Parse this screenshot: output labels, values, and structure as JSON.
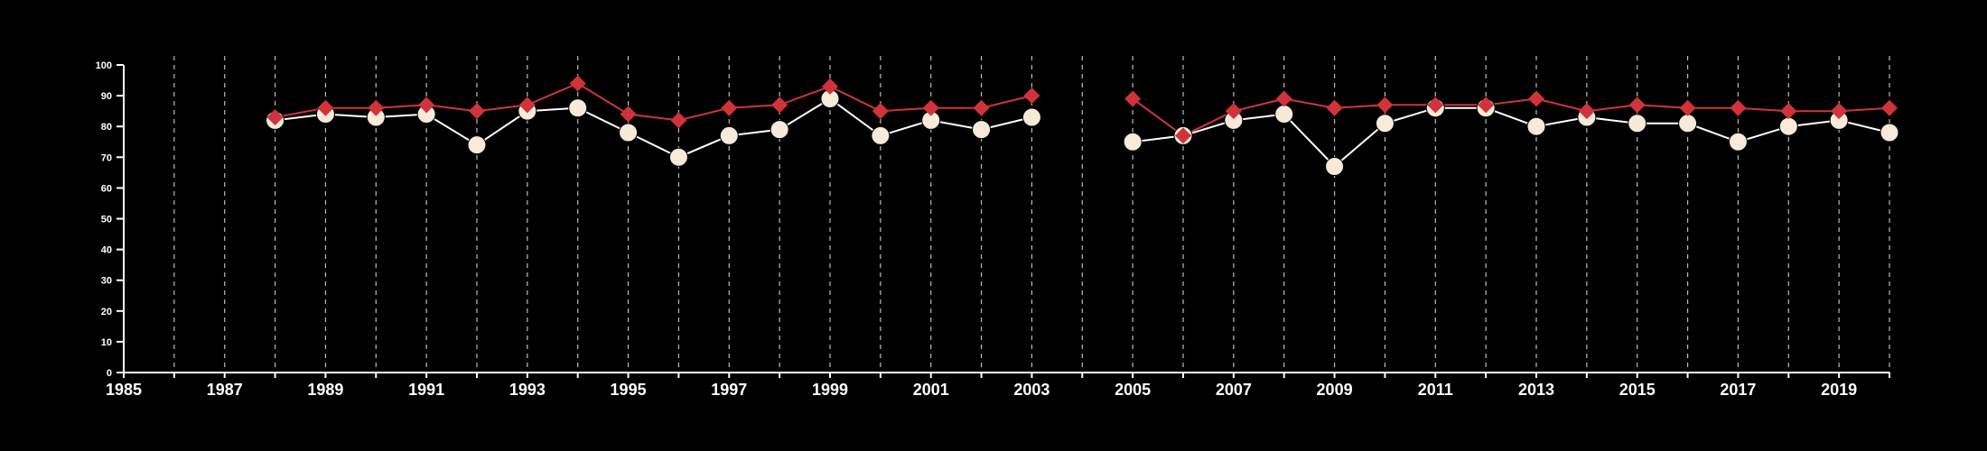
{
  "chart_data": {
    "type": "line",
    "title": "",
    "xlabel": "",
    "ylabel": "",
    "xlim": [
      1985,
      2020
    ],
    "ylim": [
      0,
      100
    ],
    "x_ticks": [
      1985,
      1987,
      1989,
      1991,
      1993,
      1995,
      1997,
      1999,
      2001,
      2003,
      2005,
      2007,
      2009,
      2011,
      2013,
      2015,
      2017,
      2019
    ],
    "y_ticks": [
      0,
      10,
      20,
      30,
      40,
      50,
      60,
      70,
      80,
      90,
      100
    ],
    "grid": "vertical dashed lines at every year",
    "legend": "none",
    "series": [
      {
        "color": "#d0333b",
        "marker": "diamond",
        "points": [
          [
            1988,
            83
          ],
          [
            1989,
            86
          ],
          [
            1990,
            86
          ],
          [
            1991,
            87
          ],
          [
            1992,
            85
          ],
          [
            1993,
            87
          ],
          [
            1994,
            94
          ],
          [
            1995,
            84
          ],
          [
            1996,
            82
          ],
          [
            1997,
            86
          ],
          [
            1998,
            87
          ],
          [
            1999,
            93
          ],
          [
            2000,
            85
          ],
          [
            2001,
            86
          ],
          [
            2002,
            86
          ],
          [
            2003,
            90
          ],
          null,
          [
            2005,
            89
          ],
          [
            2006,
            77
          ],
          [
            2007,
            85
          ],
          [
            2008,
            89
          ],
          [
            2009,
            86
          ],
          [
            2010,
            87
          ],
          [
            2011,
            87
          ],
          [
            2012,
            87
          ],
          [
            2013,
            89
          ],
          [
            2014,
            85
          ],
          [
            2015,
            87
          ],
          [
            2016,
            86
          ],
          [
            2017,
            86
          ],
          [
            2018,
            85
          ],
          [
            2019,
            85
          ],
          [
            2020,
            86
          ]
        ]
      },
      {
        "color": "#f7ead8",
        "marker": "circle",
        "points": [
          [
            1988,
            82
          ],
          [
            1989,
            84
          ],
          [
            1990,
            83
          ],
          [
            1991,
            84
          ],
          [
            1992,
            74
          ],
          [
            1993,
            85
          ],
          [
            1994,
            86
          ],
          [
            1995,
            78
          ],
          [
            1996,
            70
          ],
          [
            1997,
            77
          ],
          [
            1998,
            79
          ],
          [
            1999,
            89
          ],
          [
            2000,
            77
          ],
          [
            2001,
            82
          ],
          [
            2002,
            79
          ],
          [
            2003,
            83
          ],
          null,
          [
            2005,
            75
          ],
          [
            2006,
            77
          ],
          [
            2007,
            82
          ],
          [
            2008,
            84
          ],
          [
            2009,
            67
          ],
          [
            2010,
            81
          ],
          [
            2011,
            86
          ],
          [
            2012,
            86
          ],
          [
            2013,
            80
          ],
          [
            2014,
            83
          ],
          [
            2015,
            81
          ],
          [
            2016,
            81
          ],
          [
            2017,
            75
          ],
          [
            2018,
            80
          ],
          [
            2019,
            82
          ],
          [
            2020,
            78
          ]
        ]
      }
    ]
  },
  "colors": {
    "background": "#000000",
    "axis": "#ffffff",
    "grid": "#bbbbbb",
    "white_series_line": "#ffffff"
  }
}
